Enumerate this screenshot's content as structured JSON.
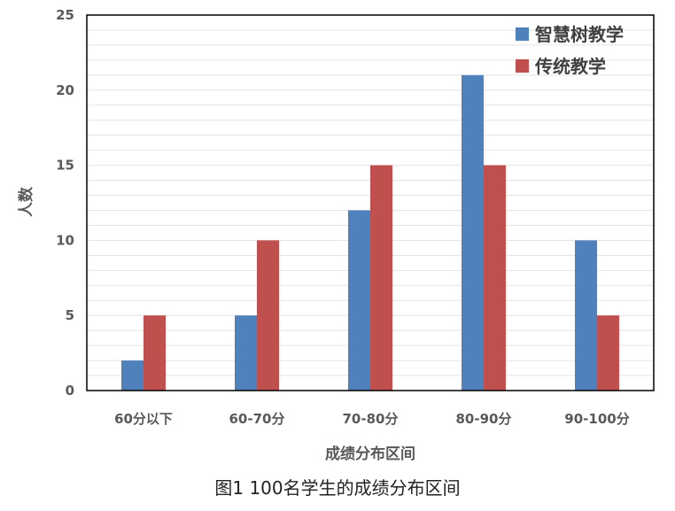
{
  "chart_data": {
    "type": "bar",
    "categories": [
      "60分以下",
      "60-70分",
      "70-80分",
      "80-90分",
      "90-100分"
    ],
    "series": [
      {
        "name": "智慧树教学",
        "color": "#4f81bd",
        "values": [
          2,
          5,
          12,
          21,
          10
        ]
      },
      {
        "name": "传统教学",
        "color": "#c0504d",
        "values": [
          5,
          10,
          15,
          15,
          5
        ]
      }
    ],
    "xlabel": "成绩分布区间",
    "ylabel": "人数",
    "ylim": [
      0,
      25
    ],
    "yticks": [
      0,
      5,
      10,
      15,
      20,
      25
    ],
    "grid": true,
    "legend_position": "top-right"
  },
  "caption": "图1  100名学生的成绩分布区间"
}
